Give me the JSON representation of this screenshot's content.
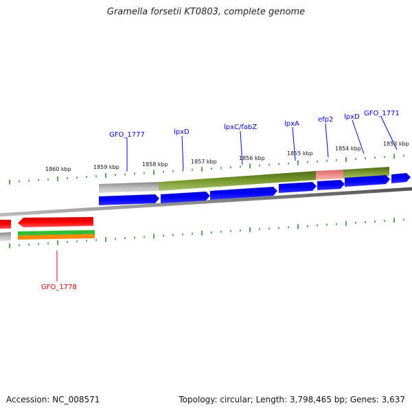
{
  "title": "Gramella forsetii KT0803, complete genome",
  "accession": "Accession: NC_008571",
  "stats": "Topology: circular; Length: 3,798,465 bp; Genes: 3,637",
  "kbp_labels": [
    "1860 kbp",
    "1859 kbp",
    "1858 kbp",
    "1857 kbp",
    "1856 kbp",
    "1855 kbp",
    "1854 kbp",
    "1853 kbp"
  ],
  "gene_labels_upper": [
    "GFO_1777",
    "lpxD",
    "lpxC/fabZ",
    "lpxA",
    "efp2",
    "lpxD",
    "GFO_1771"
  ],
  "gene_labels_lower": [
    "GFO_1778"
  ],
  "colors": {
    "cds": "#0000ee",
    "cds_reverse": "#ee0000",
    "label_blue": "#0000cc",
    "label_red": "#dd0000",
    "olive": "#6b8e23",
    "pink": "#f08080",
    "gray_feature": "#bbbbbb",
    "backbone": "#777777",
    "tick": "#2a8a2a",
    "green_track": "#33bb33",
    "orange_track": "#ff8800"
  }
}
